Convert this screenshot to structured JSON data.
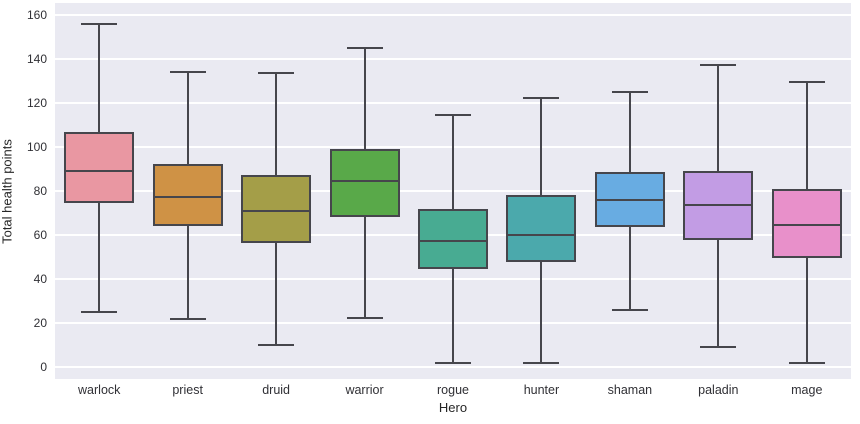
{
  "figure": {
    "background": "#ffffff",
    "plot_background": "#eaeaf2",
    "grid_color": "#ffffff",
    "box_edge_color": "#46464c",
    "tick_text_color": "#303035"
  },
  "chart_data": {
    "type": "box",
    "title": "",
    "xlabel": "Hero",
    "ylabel": "Total health points",
    "ylim": [
      -5.5,
      165.5
    ],
    "yticks": [
      0,
      20,
      40,
      60,
      80,
      100,
      120,
      140,
      160
    ],
    "grid": true,
    "legend": false,
    "categories": [
      "warlock",
      "priest",
      "druid",
      "warrior",
      "rogue",
      "hunter",
      "shaman",
      "paladin",
      "mage"
    ],
    "series": [
      {
        "name": "warlock",
        "min": 25,
        "q1": 74.5,
        "median": 89,
        "q3": 107,
        "max": 156,
        "color": "#e997a2"
      },
      {
        "name": "priest",
        "min": 22,
        "q1": 64,
        "median": 77.5,
        "q3": 92.5,
        "max": 134,
        "color": "#cf9245"
      },
      {
        "name": "druid",
        "min": 10,
        "q1": 56.5,
        "median": 71,
        "q3": 87.5,
        "max": 133.5,
        "color": "#a49e48"
      },
      {
        "name": "warrior",
        "min": 22.5,
        "q1": 68,
        "median": 84.5,
        "q3": 99,
        "max": 145,
        "color": "#59a949"
      },
      {
        "name": "rogue",
        "min": 2,
        "q1": 44.5,
        "median": 57.5,
        "q3": 72,
        "max": 114.5,
        "color": "#48ab92"
      },
      {
        "name": "hunter",
        "min": 2,
        "q1": 47.5,
        "median": 60,
        "q3": 78,
        "max": 122.5,
        "color": "#4ba9ac"
      },
      {
        "name": "shaman",
        "min": 26,
        "q1": 63.5,
        "median": 76,
        "q3": 88.5,
        "max": 125,
        "color": "#68ace2"
      },
      {
        "name": "paladin",
        "min": 9,
        "q1": 57.5,
        "median": 73.5,
        "q3": 89,
        "max": 137.5,
        "color": "#c29ce4"
      },
      {
        "name": "mage",
        "min": 2,
        "q1": 49.5,
        "median": 64.5,
        "q3": 81,
        "max": 129.5,
        "color": "#e890ca"
      }
    ]
  }
}
